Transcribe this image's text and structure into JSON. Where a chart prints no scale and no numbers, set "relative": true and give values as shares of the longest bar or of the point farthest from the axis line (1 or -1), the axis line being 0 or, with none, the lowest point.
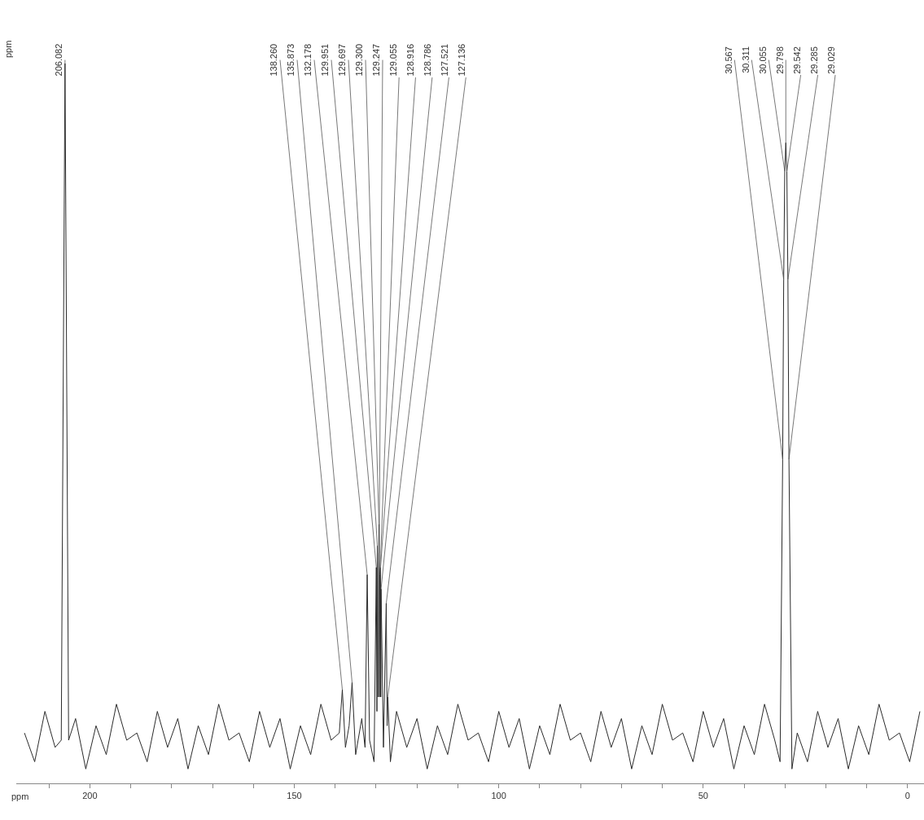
{
  "chart_data": {
    "type": "line",
    "relative": true,
    "xlabel": "ppm",
    "color": "#2b2b2b",
    "xlim": [
      218,
      -4
    ],
    "xticks": [
      {
        "value": 210,
        "label": null
      },
      200,
      {
        "value": 190,
        "label": null
      },
      {
        "value": 180,
        "label": null
      },
      {
        "value": 170,
        "label": null
      },
      {
        "value": 160,
        "label": null
      },
      150,
      {
        "value": 140,
        "label": null
      },
      {
        "value": 130,
        "label": null
      },
      {
        "value": 120,
        "label": null
      },
      {
        "value": 110,
        "label": null
      },
      100,
      {
        "value": 90,
        "label": null
      },
      {
        "value": 80,
        "label": null
      },
      {
        "value": 70,
        "label": null
      },
      {
        "value": 60,
        "label": null
      },
      50,
      {
        "value": 40,
        "label": null
      },
      {
        "value": 30,
        "label": null
      },
      {
        "value": 20,
        "label": null
      },
      {
        "value": 10,
        "label": null
      },
      0
    ],
    "x": [
      216,
      213.5,
      211,
      208.5,
      207,
      206.082,
      205.2,
      203.5,
      201,
      198.5,
      196,
      193.5,
      191,
      188.5,
      186,
      183.5,
      181,
      178.5,
      176,
      173.5,
      171,
      168.5,
      166,
      163.5,
      161,
      158.5,
      156,
      153.5,
      151,
      148.5,
      146,
      143.5,
      141,
      139,
      138.26,
      137.5,
      136.6,
      135.873,
      135,
      133.5,
      132.7,
      132.178,
      131.6,
      130.5,
      129.951,
      129.8,
      129.697,
      129.5,
      129.3,
      129.247,
      129.15,
      129.055,
      128.916,
      128.85,
      128.786,
      128.2,
      127.521,
      127.3,
      127.136,
      126.5,
      125,
      122.5,
      120,
      117.5,
      115,
      112.5,
      110,
      107.5,
      105,
      102.5,
      100,
      97.5,
      95,
      92.5,
      90,
      87.5,
      85,
      82.5,
      80,
      77.5,
      75,
      72.5,
      70,
      67.5,
      65,
      62.5,
      60,
      57.5,
      55,
      52.5,
      50,
      47.5,
      45,
      42.5,
      40,
      37.5,
      35,
      32.5,
      31.2,
      30.567,
      30.311,
      30.055,
      29.798,
      29.542,
      29.285,
      29.029,
      28.3,
      27,
      24.5,
      22,
      19.5,
      17,
      14.5,
      12,
      9.5,
      7,
      4.5,
      2,
      -0.5,
      -3
    ],
    "values": [
      0.07,
      0.03,
      0.1,
      0.05,
      0.06,
      1.0,
      0.06,
      0.09,
      0.02,
      0.08,
      0.04,
      0.11,
      0.06,
      0.07,
      0.03,
      0.1,
      0.05,
      0.09,
      0.02,
      0.08,
      0.04,
      0.11,
      0.06,
      0.07,
      0.03,
      0.1,
      0.05,
      0.09,
      0.02,
      0.08,
      0.04,
      0.11,
      0.06,
      0.07,
      0.13,
      0.05,
      0.08,
      0.14,
      0.04,
      0.09,
      0.05,
      0.29,
      0.06,
      0.03,
      0.3,
      0.1,
      0.33,
      0.12,
      0.36,
      0.32,
      0.12,
      0.29,
      0.3,
      0.12,
      0.27,
      0.05,
      0.25,
      0.08,
      0.12,
      0.03,
      0.1,
      0.05,
      0.09,
      0.02,
      0.08,
      0.04,
      0.11,
      0.06,
      0.07,
      0.03,
      0.1,
      0.05,
      0.09,
      0.02,
      0.08,
      0.04,
      0.11,
      0.06,
      0.07,
      0.03,
      0.1,
      0.05,
      0.09,
      0.02,
      0.08,
      0.04,
      0.11,
      0.06,
      0.07,
      0.03,
      0.1,
      0.05,
      0.09,
      0.02,
      0.08,
      0.04,
      0.11,
      0.06,
      0.03,
      0.45,
      0.7,
      0.85,
      0.89,
      0.85,
      0.7,
      0.45,
      0.02,
      0.07,
      0.03,
      0.1,
      0.05,
      0.09,
      0.02,
      0.08,
      0.04,
      0.11,
      0.06,
      0.07,
      0.03,
      0.1
    ],
    "annotations": [
      "ppm",
      {
        "text": "206.082",
        "x": 206.082,
        "y": 1.0
      },
      {
        "text": "138.260",
        "x": 138.26,
        "y": 0.13
      },
      {
        "text": "135.873",
        "x": 135.873,
        "y": 0.14
      },
      {
        "text": "132.178",
        "x": 132.178,
        "y": 0.29
      },
      {
        "text": "129.951",
        "x": 129.951,
        "y": 0.3
      },
      {
        "text": "129.697",
        "x": 129.697,
        "y": 0.33
      },
      {
        "text": "129.300",
        "x": 129.3,
        "y": 0.36
      },
      {
        "text": "129.247",
        "x": 129.247,
        "y": 0.32
      },
      {
        "text": "129.055",
        "x": 129.055,
        "y": 0.29
      },
      {
        "text": "128.916",
        "x": 128.916,
        "y": 0.3
      },
      {
        "text": "128.786",
        "x": 128.786,
        "y": 0.27
      },
      {
        "text": "127.521",
        "x": 127.521,
        "y": 0.25
      },
      {
        "text": "127.136",
        "x": 127.136,
        "y": 0.12
      },
      {
        "text": "30.567",
        "x": 30.567,
        "y": 0.45
      },
      {
        "text": "30.311",
        "x": 30.311,
        "y": 0.7
      },
      {
        "text": "30.055",
        "x": 30.055,
        "y": 0.85
      },
      {
        "text": "29.798",
        "x": 29.798,
        "y": 0.89
      },
      {
        "text": "29.542",
        "x": 29.542,
        "y": 0.85
      },
      {
        "text": "29.285",
        "x": 29.285,
        "y": 0.7
      },
      {
        "text": "29.029",
        "x": 29.029,
        "y": 0.45
      }
    ]
  }
}
